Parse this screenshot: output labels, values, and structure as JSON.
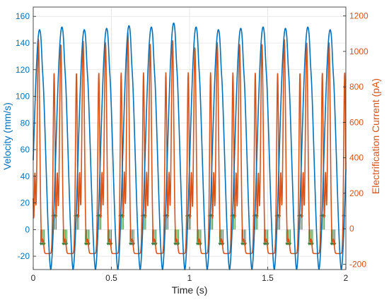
{
  "chart_data": {
    "type": "line",
    "xlabel": "Time (s)",
    "ylabel_left": "Velocity (mm/s)",
    "ylabel_right": "Electrification Current (pA)",
    "xlim": [
      0,
      2
    ],
    "ylim_left": [
      -30,
      167
    ],
    "ylim_right": [
      -230,
      1250
    ],
    "x_ticks": [
      0,
      0.5,
      1,
      1.5,
      2
    ],
    "x_tick_labels": [
      "0",
      "0.5",
      "1",
      "1.5",
      "2"
    ],
    "y_left_ticks": [
      -20,
      0,
      20,
      40,
      60,
      80,
      100,
      120,
      140,
      160
    ],
    "y_right_ticks": [
      -200,
      0,
      200,
      400,
      600,
      800,
      1000,
      1200
    ],
    "grid": true,
    "colors": {
      "velocity": "#0072BD",
      "current": "#D95319",
      "arrows": "#2E7D32"
    },
    "series": [
      {
        "name": "Velocity",
        "axis": "left",
        "period_s": 0.143,
        "peaks": [
          150,
          152,
          150,
          151,
          153,
          152,
          155,
          152,
          150,
          151,
          152,
          151,
          152,
          150,
          152
        ],
        "min": -30
      },
      {
        "name": "Electrification Current",
        "axis": "right",
        "period_s": 0.143,
        "peaks": [
          1070,
          1040,
          1060,
          1050,
          1110,
          1040,
          1060,
          1020,
          1050,
          1040,
          1040,
          1070,
          1050,
          1050
        ],
        "secondary_peak": 880,
        "shoulder": 580,
        "min": -200
      }
    ]
  }
}
